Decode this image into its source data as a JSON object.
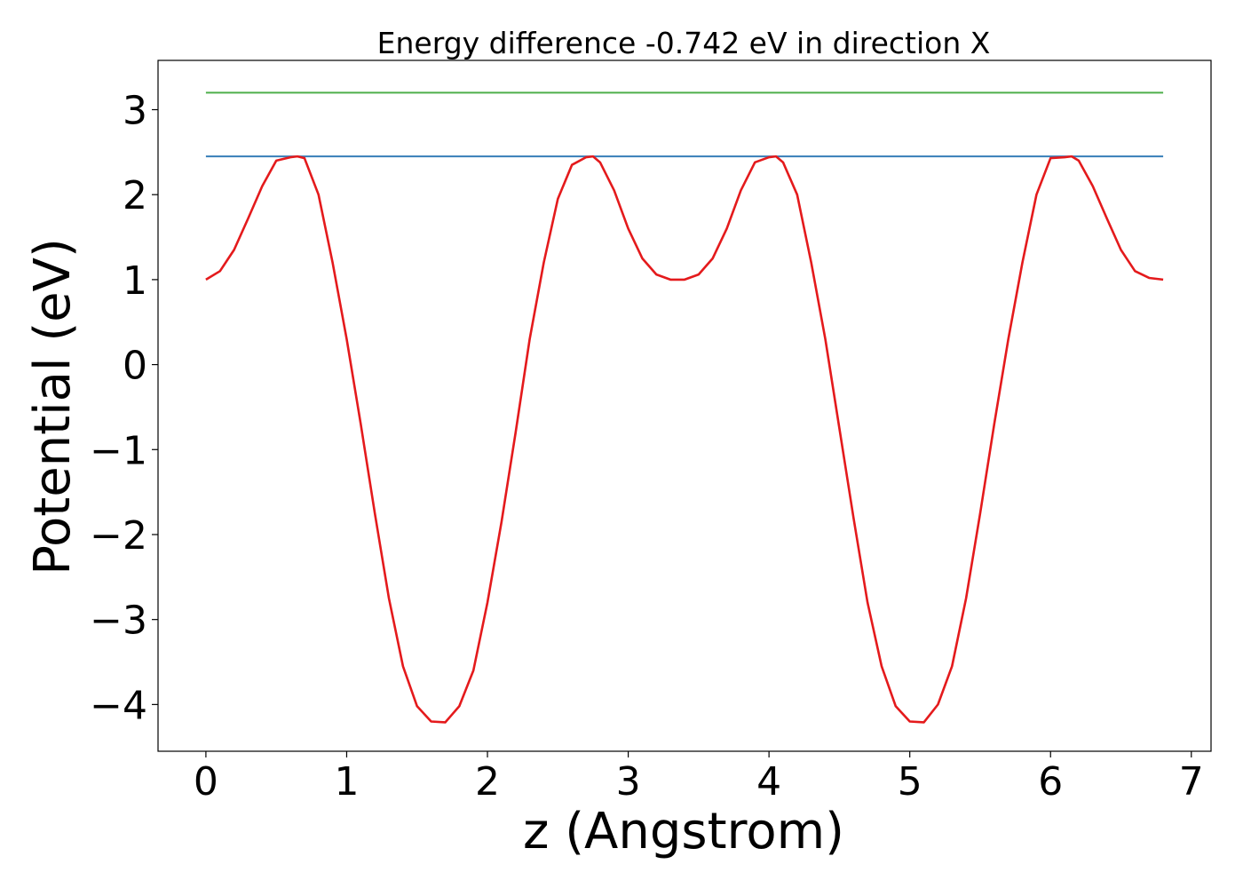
{
  "chart_data": {
    "type": "line",
    "title": "Energy difference -0.742 eV in direction X",
    "xlabel": "z (Angstrom)",
    "ylabel": "Potential (eV)",
    "xlim": [
      -0.34,
      7.14
    ],
    "ylim": [
      -4.55,
      3.58
    ],
    "xticks": [
      0,
      1,
      2,
      3,
      4,
      5,
      6,
      7
    ],
    "yticks": [
      -4,
      -3,
      -2,
      -1,
      0,
      1,
      2,
      3
    ],
    "grid": false,
    "legend": "none",
    "hlines": [
      {
        "y": 3.2,
        "x": [
          0,
          6.8
        ],
        "color": "#4daf4a"
      },
      {
        "y": 2.45,
        "x": [
          0,
          6.8
        ],
        "color": "#377eb8"
      }
    ],
    "series": [
      {
        "color": "#e41a1c",
        "x": [
          0,
          0.1,
          0.2,
          0.3,
          0.4,
          0.5,
          0.6,
          0.65,
          0.7,
          0.8,
          0.9,
          1.0,
          1.1,
          1.2,
          1.3,
          1.4,
          1.5,
          1.6,
          1.7,
          1.8,
          1.9,
          2.0,
          2.1,
          2.2,
          2.3,
          2.4,
          2.5,
          2.6,
          2.7,
          2.75,
          2.8,
          2.9,
          3.0,
          3.1,
          3.2,
          3.3,
          3.4,
          3.5,
          3.6,
          3.7,
          3.8,
          3.9,
          4.0,
          4.05,
          4.1,
          4.2,
          4.3,
          4.4,
          4.5,
          4.6,
          4.7,
          4.8,
          4.9,
          5.0,
          5.1,
          5.2,
          5.3,
          5.4,
          5.5,
          5.6,
          5.7,
          5.8,
          5.9,
          6.0,
          6.1,
          6.15,
          6.2,
          6.3,
          6.4,
          6.5,
          6.6,
          6.7,
          6.8
        ],
        "y": [
          1.0,
          1.1,
          1.35,
          1.72,
          2.1,
          2.4,
          2.44,
          2.45,
          2.43,
          2.0,
          1.2,
          0.3,
          -0.7,
          -1.75,
          -2.75,
          -3.55,
          -4.02,
          -4.2,
          -4.21,
          -4.02,
          -3.6,
          -2.8,
          -1.85,
          -0.8,
          0.3,
          1.2,
          1.95,
          2.35,
          2.44,
          2.45,
          2.38,
          2.05,
          1.6,
          1.25,
          1.06,
          1.0,
          1.0,
          1.06,
          1.25,
          1.6,
          2.05,
          2.38,
          2.44,
          2.45,
          2.38,
          2.0,
          1.2,
          0.3,
          -0.75,
          -1.8,
          -2.8,
          -3.55,
          -4.02,
          -4.2,
          -4.21,
          -4.0,
          -3.55,
          -2.75,
          -1.75,
          -0.7,
          0.3,
          1.2,
          2.0,
          2.43,
          2.44,
          2.45,
          2.4,
          2.1,
          1.72,
          1.35,
          1.1,
          1.02,
          1.0
        ]
      }
    ]
  }
}
